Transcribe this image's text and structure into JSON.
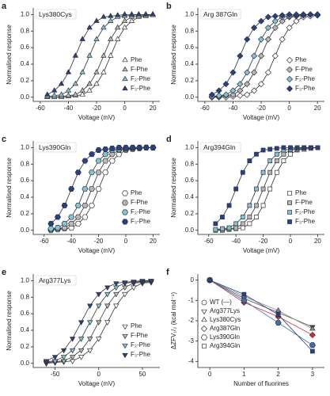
{
  "chart_data": [
    {
      "type": "line",
      "panel": "a",
      "annotation": "Lys380Cys",
      "marker": "triangle",
      "xlabel": "Voltage (mV)",
      "ylabel": "Normalised response",
      "x": [
        -55,
        -50,
        -45,
        -40,
        -35,
        -30,
        -25,
        -20,
        -15,
        -10,
        -5,
        0,
        5,
        10,
        15,
        20
      ],
      "xlim": [
        -65,
        25
      ],
      "xticks": [
        -60,
        -40,
        -20,
        0,
        20
      ],
      "ylim": [
        -0.05,
        1.08
      ],
      "yticks": [
        {
          "value": 0,
          "label": "0.0"
        },
        0.2,
        0.4,
        0.6,
        0.8,
        {
          "value": 1,
          "label": "1.0"
        }
      ],
      "series": [
        {
          "name": "Phe",
          "color": "#ffffff",
          "values": [
            0,
            0,
            0,
            0.01,
            0.02,
            0.03,
            0.08,
            0.16,
            0.3,
            0.5,
            0.7,
            0.84,
            0.92,
            0.97,
            0.98,
            0.99
          ]
        },
        {
          "name": "F-Phe",
          "color": "#b8b8b8",
          "values": [
            0,
            0,
            0.01,
            0.02,
            0.03,
            0.08,
            0.16,
            0.3,
            0.5,
            0.7,
            0.84,
            0.92,
            0.97,
            0.98,
            0.99,
            1
          ]
        },
        {
          "name": "F₂-Phe",
          "color": "#7cc5dc",
          "values": [
            0.01,
            0.02,
            0.03,
            0.08,
            0.16,
            0.3,
            0.5,
            0.7,
            0.84,
            0.92,
            0.97,
            0.98,
            0.99,
            1,
            1,
            1
          ]
        },
        {
          "name": "F₃-Phe",
          "color": "#23418e",
          "values": [
            0.03,
            0.08,
            0.16,
            0.3,
            0.5,
            0.7,
            0.84,
            0.92,
            0.97,
            0.98,
            0.99,
            1,
            1,
            1,
            1,
            1
          ]
        }
      ]
    },
    {
      "type": "line",
      "panel": "b",
      "annotation": "Arg 387Gln",
      "marker": "diamond",
      "xlabel": "Voltage (mV)",
      "ylabel": "Normalised response",
      "x": [
        -55,
        -50,
        -45,
        -40,
        -35,
        -30,
        -25,
        -20,
        -15,
        -10,
        -5,
        0,
        5,
        10,
        15,
        20
      ],
      "xlim": [
        -65,
        25
      ],
      "xticks": [
        -60,
        -40,
        -20,
        0,
        20
      ],
      "ylim": [
        -0.05,
        1.08
      ],
      "yticks": [
        {
          "value": 0,
          "label": "0.0"
        },
        0.2,
        0.4,
        0.6,
        0.8,
        {
          "value": 1,
          "label": "1.0"
        }
      ],
      "series": [
        {
          "name": "Phe",
          "color": "#ffffff",
          "values": [
            0,
            0,
            0,
            0.01,
            0.02,
            0.03,
            0.08,
            0.16,
            0.3,
            0.5,
            0.7,
            0.84,
            0.92,
            0.97,
            0.98,
            0.99
          ]
        },
        {
          "name": "F-Phe",
          "color": "#b8b8b8",
          "values": [
            0,
            0.01,
            0.02,
            0.03,
            0.08,
            0.16,
            0.3,
            0.5,
            0.7,
            0.84,
            0.92,
            0.97,
            0.98,
            0.99,
            1,
            1
          ]
        },
        {
          "name": "F₂-Phe",
          "color": "#7cc5dc",
          "values": [
            0.01,
            0.02,
            0.03,
            0.08,
            0.16,
            0.3,
            0.5,
            0.7,
            0.84,
            0.92,
            0.97,
            0.98,
            0.99,
            1,
            1,
            1
          ]
        },
        {
          "name": "F₃-Phe",
          "color": "#23418e",
          "values": [
            0.03,
            0.08,
            0.16,
            0.3,
            0.5,
            0.7,
            0.84,
            0.92,
            0.97,
            0.98,
            0.99,
            1,
            1,
            1,
            1,
            1
          ]
        }
      ]
    },
    {
      "type": "line",
      "panel": "c",
      "annotation": "Lys390Gln",
      "marker": "hexagon",
      "xlabel": "Voltage (mV)",
      "ylabel": "Normalised response",
      "x": [
        -55,
        -50,
        -45,
        -40,
        -35,
        -30,
        -25,
        -20,
        -15,
        -10,
        -5,
        0,
        5,
        10,
        15,
        20
      ],
      "xlim": [
        -68,
        25
      ],
      "xticks": [
        -60,
        -40,
        -20,
        0,
        20
      ],
      "ylim": [
        -0.05,
        1.08
      ],
      "yticks": [
        {
          "value": 0,
          "label": "0.0"
        },
        0.2,
        0.4,
        0.6,
        0.8,
        {
          "value": 1,
          "label": "1.0"
        }
      ],
      "series": [
        {
          "name": "Phe",
          "color": "#ffffff",
          "values": [
            0,
            0.01,
            0.02,
            0.03,
            0.08,
            0.16,
            0.3,
            0.5,
            0.7,
            0.84,
            0.92,
            0.97,
            0.98,
            0.99,
            1,
            1
          ]
        },
        {
          "name": "F-Phe",
          "color": "#b8b8b8",
          "values": [
            0.01,
            0.02,
            0.03,
            0.08,
            0.16,
            0.3,
            0.5,
            0.7,
            0.84,
            0.92,
            0.97,
            0.98,
            0.99,
            1,
            1,
            1
          ]
        },
        {
          "name": "F₂-Phe",
          "color": "#7cc5dc",
          "values": [
            0.02,
            0.03,
            0.08,
            0.16,
            0.3,
            0.5,
            0.7,
            0.84,
            0.92,
            0.97,
            0.98,
            0.99,
            1,
            1,
            1,
            1
          ]
        },
        {
          "name": "F₃-Phe",
          "color": "#23418e",
          "values": [
            0.08,
            0.16,
            0.3,
            0.5,
            0.7,
            0.84,
            0.92,
            0.97,
            0.98,
            0.99,
            1,
            1,
            1,
            1,
            1,
            1
          ]
        }
      ]
    },
    {
      "type": "line",
      "panel": "d",
      "annotation": "Arg394Gln",
      "marker": "square",
      "xlabel": "Voltage (mV)",
      "ylabel": "Normalised response",
      "x": [
        -55,
        -50,
        -45,
        -40,
        -35,
        -30,
        -25,
        -20,
        -15,
        -10,
        -5,
        0,
        5,
        10,
        15,
        20
      ],
      "xlim": [
        -68,
        25
      ],
      "xticks": [
        -60,
        -40,
        -20,
        0,
        20
      ],
      "ylim": [
        -0.05,
        1.08
      ],
      "yticks": [
        {
          "value": 0,
          "label": "0.0"
        },
        0.2,
        0.4,
        0.6,
        0.8,
        {
          "value": 1,
          "label": "1.0"
        }
      ],
      "series": [
        {
          "name": "Phe",
          "color": "#ffffff",
          "values": [
            0,
            0,
            0.01,
            0.02,
            0.03,
            0.08,
            0.16,
            0.3,
            0.5,
            0.7,
            0.84,
            0.92,
            0.97,
            0.98,
            0.99,
            1
          ]
        },
        {
          "name": "F-Phe",
          "color": "#b8b8b8",
          "values": [
            0,
            0.01,
            0.02,
            0.03,
            0.08,
            0.16,
            0.3,
            0.5,
            0.7,
            0.84,
            0.92,
            0.97,
            0.98,
            0.99,
            1,
            1
          ]
        },
        {
          "name": "F₂-Phe",
          "color": "#7cc5dc",
          "values": [
            0.01,
            0.02,
            0.03,
            0.08,
            0.16,
            0.3,
            0.5,
            0.7,
            0.84,
            0.92,
            0.97,
            0.98,
            0.99,
            1,
            1,
            1
          ]
        },
        {
          "name": "F₃-Phe",
          "color": "#23418e",
          "values": [
            0.08,
            0.16,
            0.3,
            0.5,
            0.7,
            0.84,
            0.92,
            0.97,
            0.98,
            0.99,
            1,
            1,
            1,
            1,
            1,
            1
          ]
        }
      ]
    },
    {
      "type": "line",
      "panel": "e",
      "annotation": "Arg377Lys",
      "marker": "triangle-down",
      "xlabel": "Voltage (mV)",
      "ylabel": "Normalised response",
      "x": [
        -60,
        -50,
        -40,
        -30,
        -20,
        -10,
        0,
        10,
        20,
        30,
        40,
        50,
        60
      ],
      "xlim": [
        -75,
        70
      ],
      "xticks": [
        -50,
        0,
        50
      ],
      "ylim": [
        -0.05,
        1.08
      ],
      "yticks": [
        {
          "value": 0,
          "label": "0.0"
        },
        0.2,
        0.4,
        0.6,
        0.8,
        {
          "value": 1,
          "label": "1.0"
        }
      ],
      "series": [
        {
          "name": "Phe",
          "color": "#ffffff",
          "values": [
            0,
            0.01,
            0.02,
            0.03,
            0.08,
            0.16,
            0.3,
            0.5,
            0.7,
            0.84,
            0.92,
            0.97,
            0.98
          ]
        },
        {
          "name": "F-Phe",
          "color": "#b8b8b8",
          "values": [
            0.01,
            0.02,
            0.03,
            0.08,
            0.16,
            0.3,
            0.5,
            0.7,
            0.84,
            0.92,
            0.97,
            0.98,
            0.99
          ]
        },
        {
          "name": "F₂-Phe",
          "color": "#7cc5dc",
          "values": [
            0.02,
            0.03,
            0.08,
            0.16,
            0.3,
            0.5,
            0.7,
            0.84,
            0.92,
            0.97,
            0.98,
            0.99,
            1
          ]
        },
        {
          "name": "F₃-Phe",
          "color": "#23418e",
          "values": [
            0.03,
            0.08,
            0.16,
            0.3,
            0.5,
            0.7,
            0.84,
            0.92,
            0.97,
            0.98,
            0.99,
            1,
            1
          ]
        }
      ]
    },
    {
      "type": "line",
      "panel": "f",
      "xlabel": "Number of fluorines",
      "ylabel": "ΔZFV₁/₂ (kcal mol⁻¹)",
      "x": [
        0,
        1,
        2,
        3
      ],
      "xlim": [
        -0.35,
        3.35
      ],
      "xticks": [
        0,
        1,
        2,
        3
      ],
      "ylim": [
        -4.3,
        0.3
      ],
      "yticks": [
        0,
        -1,
        -2,
        -3,
        -4
      ],
      "series": [
        {
          "name": "WT (—)",
          "marker": "circle",
          "color": "#ffffff",
          "values": [
            0,
            null,
            null,
            null
          ]
        },
        {
          "name": "Arg377Lys",
          "marker": "triangle-down",
          "color": "#555555",
          "values": [
            0,
            -0.9,
            -1.6,
            -2.3
          ]
        },
        {
          "name": "Lys380Cys",
          "marker": "triangle",
          "color": "#8a8a8a",
          "values": [
            0,
            -0.8,
            -1.5,
            -2.4
          ]
        },
        {
          "name": "Arg387Gln",
          "marker": "diamond",
          "color": "#d03030",
          "values": [
            0,
            -1.1,
            -1.8,
            -2.7
          ]
        },
        {
          "name": "Lys390Gln",
          "marker": "hexagon",
          "color": "#3a6fb0",
          "values": [
            0,
            -1.0,
            -2.1,
            -3.2
          ]
        },
        {
          "name": "Arg394Gln",
          "marker": "square",
          "color": "#23418e",
          "values": [
            0,
            -0.7,
            -1.7,
            -3.5
          ]
        }
      ]
    }
  ]
}
